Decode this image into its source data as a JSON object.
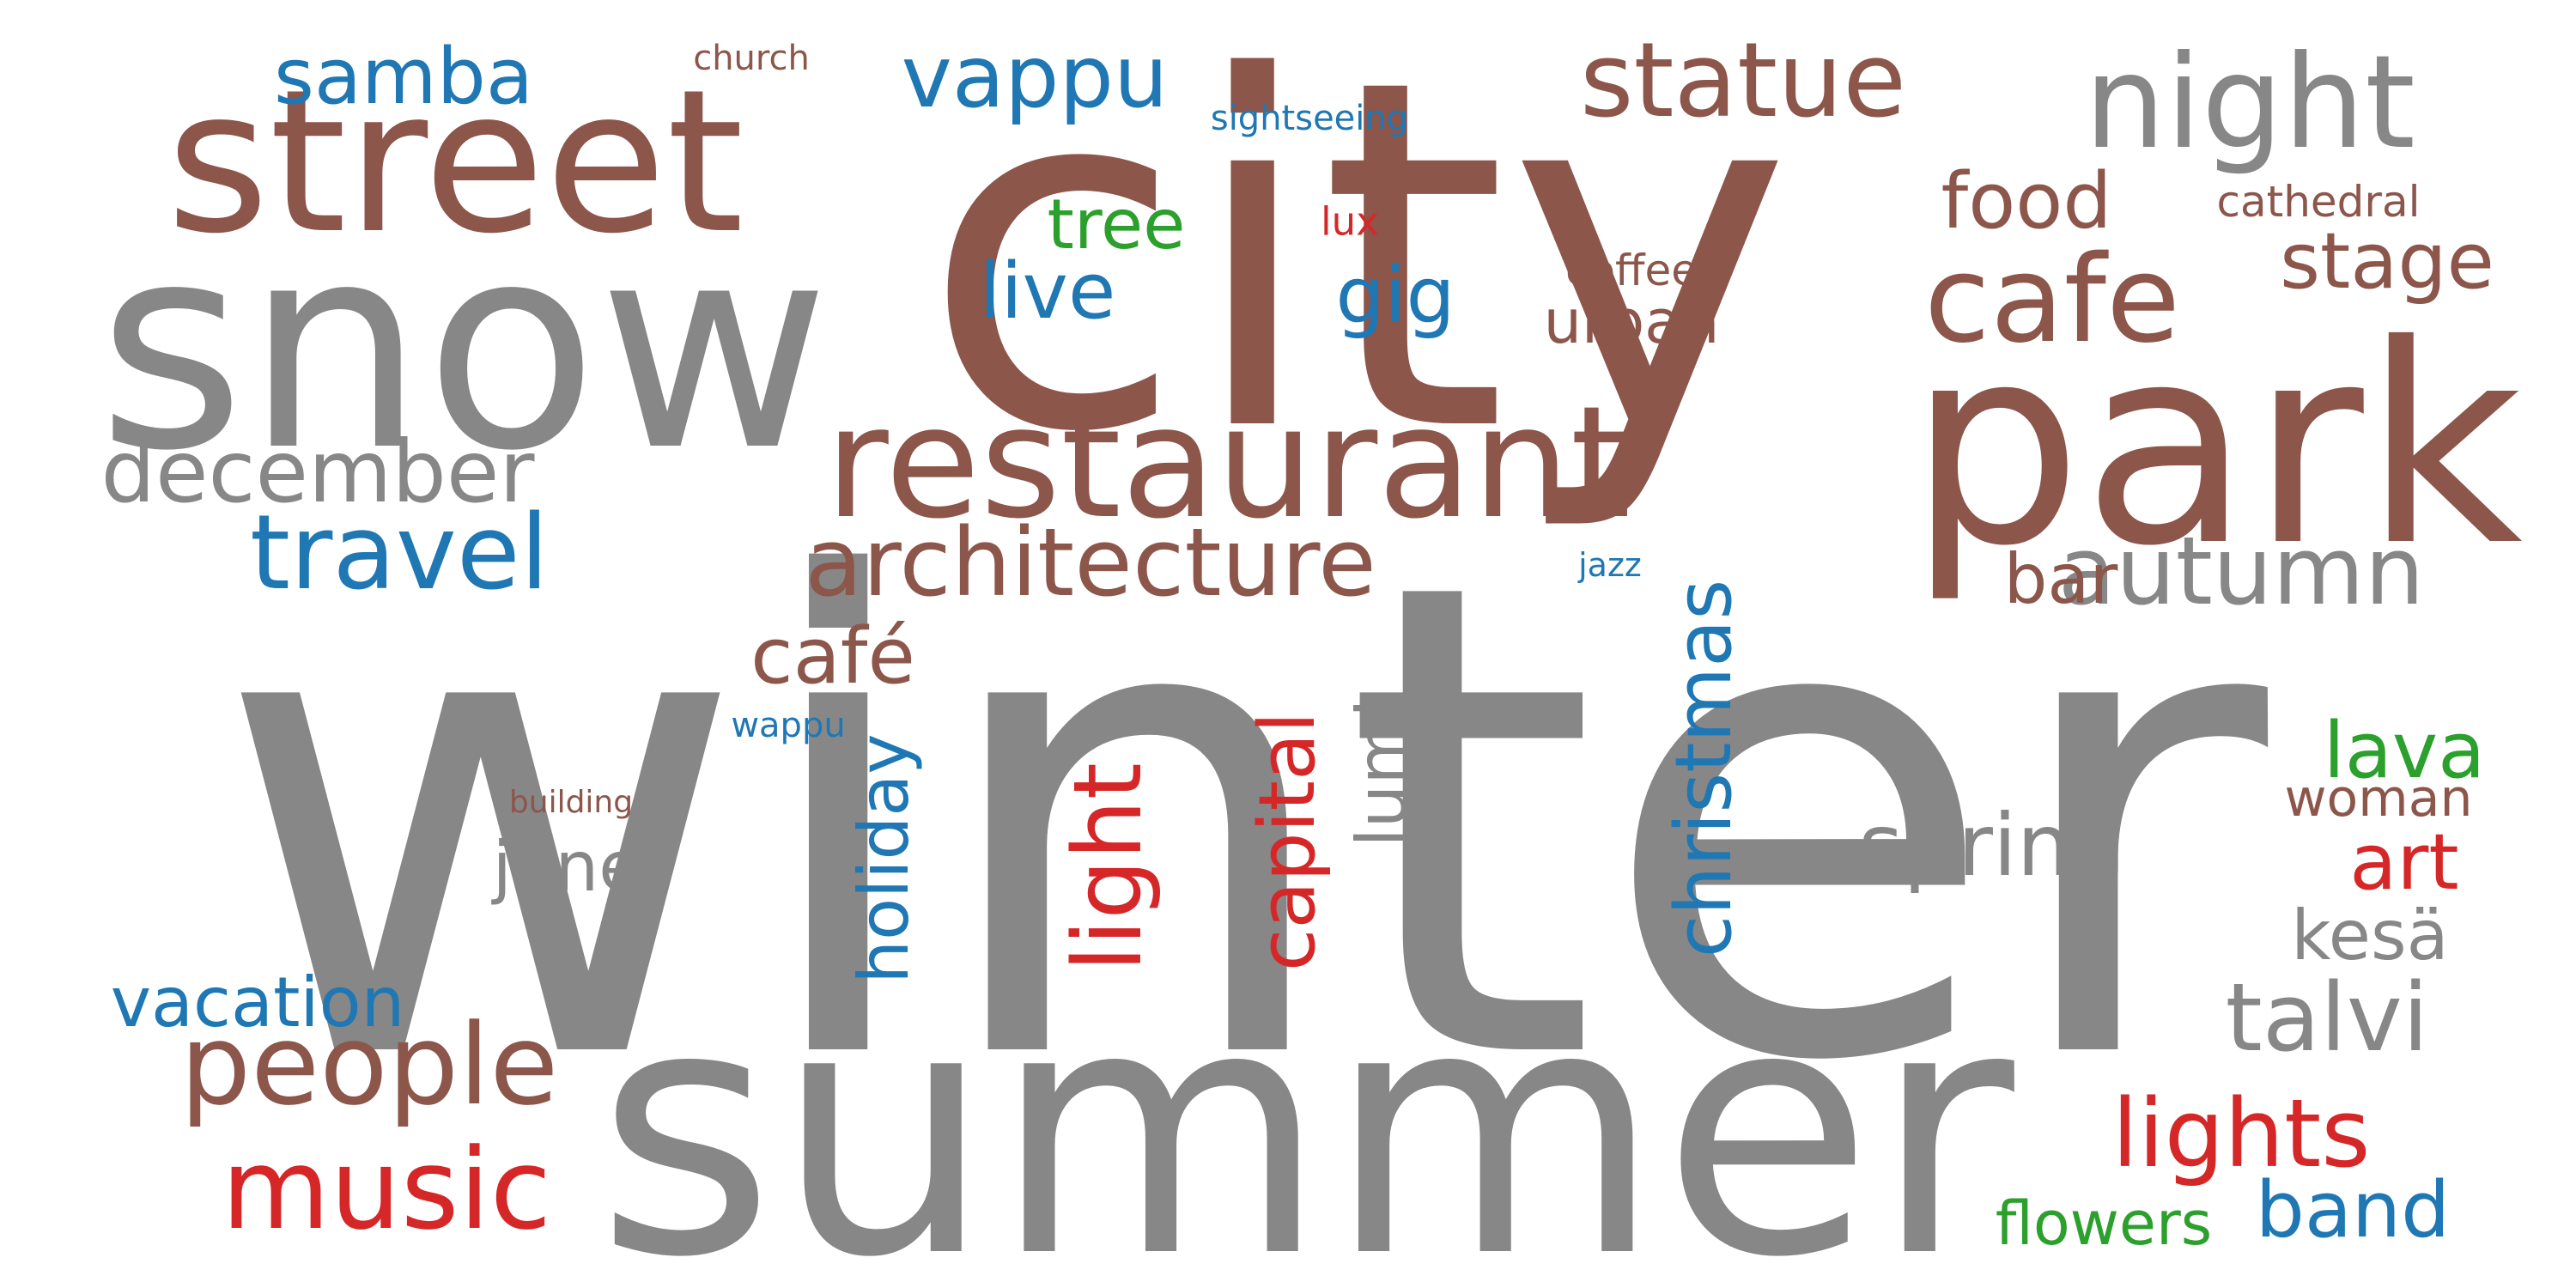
{
  "colors": {
    "gray": "#878787",
    "brown": "#8c564b",
    "blue": "#1f77b4",
    "red": "#d62728",
    "green": "#2ca02c"
  },
  "words": [
    {
      "text": "winter",
      "color": "gray"
    },
    {
      "text": "city",
      "color": "brown"
    },
    {
      "text": "summer",
      "color": "gray"
    },
    {
      "text": "snow",
      "color": "gray"
    },
    {
      "text": "park",
      "color": "brown"
    },
    {
      "text": "street",
      "color": "brown"
    },
    {
      "text": "restaurant",
      "color": "brown"
    },
    {
      "text": "night",
      "color": "gray"
    },
    {
      "text": "cafe",
      "color": "brown"
    },
    {
      "text": "statue",
      "color": "brown"
    },
    {
      "text": "architecture",
      "color": "brown"
    },
    {
      "text": "people",
      "color": "brown"
    },
    {
      "text": "december",
      "color": "gray"
    },
    {
      "text": "travel",
      "color": "blue"
    },
    {
      "text": "music",
      "color": "red"
    },
    {
      "text": "samba",
      "color": "blue"
    },
    {
      "text": "vappu",
      "color": "blue"
    },
    {
      "text": "autumn",
      "color": "gray"
    },
    {
      "text": "spring",
      "color": "gray"
    },
    {
      "text": "lights",
      "color": "red"
    },
    {
      "text": "talvi",
      "color": "gray"
    },
    {
      "text": "christmas",
      "color": "blue"
    },
    {
      "text": "light",
      "color": "red"
    },
    {
      "text": "capital",
      "color": "red"
    },
    {
      "text": "holiday",
      "color": "blue"
    },
    {
      "text": "lumi",
      "color": "gray"
    },
    {
      "text": "stage",
      "color": "brown"
    },
    {
      "text": "food",
      "color": "brown"
    },
    {
      "text": "gig",
      "color": "blue"
    },
    {
      "text": "live",
      "color": "blue"
    },
    {
      "text": "tree",
      "color": "green"
    },
    {
      "text": "café",
      "color": "brown"
    },
    {
      "text": "june",
      "color": "gray"
    },
    {
      "text": "vacation",
      "color": "blue"
    },
    {
      "text": "art",
      "color": "red"
    },
    {
      "text": "lava",
      "color": "green"
    },
    {
      "text": "band",
      "color": "blue"
    },
    {
      "text": "bar",
      "color": "brown"
    },
    {
      "text": "urban",
      "color": "brown"
    },
    {
      "text": "kesä",
      "color": "gray"
    },
    {
      "text": "woman",
      "color": "brown"
    },
    {
      "text": "flowers",
      "color": "green"
    },
    {
      "text": "coffee",
      "color": "brown"
    },
    {
      "text": "cathedral",
      "color": "brown"
    },
    {
      "text": "sightseeing",
      "color": "blue"
    },
    {
      "text": "lux",
      "color": "red"
    },
    {
      "text": "church",
      "color": "brown"
    },
    {
      "text": "jazz",
      "color": "blue"
    },
    {
      "text": "wappu",
      "color": "blue"
    },
    {
      "text": "building",
      "color": "brown"
    }
  ]
}
